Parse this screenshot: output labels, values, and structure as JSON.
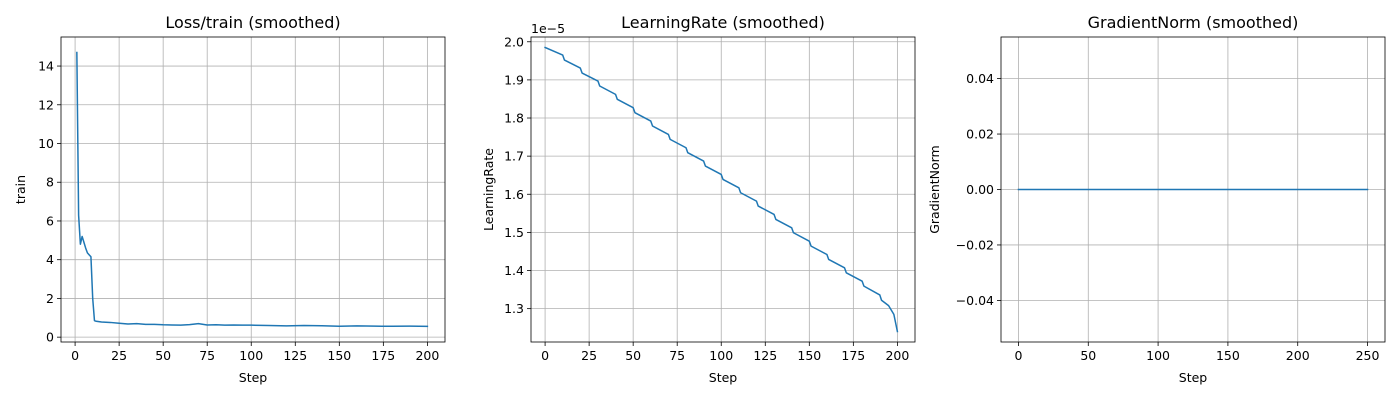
{
  "chart_data": [
    {
      "type": "line",
      "title": "Loss/train (smoothed)",
      "xlabel": "Step",
      "ylabel": "train",
      "xlim": [
        -8,
        210
      ],
      "ylim": [
        -0.25,
        15.5
      ],
      "grid": true,
      "xticks": [
        0,
        25,
        50,
        75,
        100,
        125,
        150,
        175,
        200
      ],
      "yticks": [
        0,
        2,
        4,
        6,
        8,
        10,
        12,
        14
      ],
      "ytick_labels": [
        "0",
        "2",
        "4",
        "6",
        "8",
        "10",
        "12",
        "14"
      ],
      "color": "#1f77b4",
      "series": [
        {
          "x": [
            1,
            2,
            3,
            4,
            5,
            6,
            7,
            8,
            9,
            10,
            11,
            12,
            15,
            20,
            25,
            30,
            35,
            40,
            45,
            50,
            55,
            60,
            65,
            70,
            75,
            80,
            85,
            90,
            95,
            100,
            110,
            120,
            130,
            140,
            150,
            160,
            170,
            180,
            190,
            200
          ],
          "y": [
            14.7,
            6.3,
            4.8,
            5.2,
            4.9,
            4.6,
            4.35,
            4.25,
            4.15,
            2.0,
            0.85,
            0.82,
            0.78,
            0.76,
            0.72,
            0.68,
            0.7,
            0.66,
            0.66,
            0.64,
            0.63,
            0.62,
            0.65,
            0.7,
            0.63,
            0.64,
            0.62,
            0.63,
            0.62,
            0.62,
            0.6,
            0.58,
            0.6,
            0.59,
            0.56,
            0.58,
            0.57,
            0.56,
            0.57,
            0.56
          ]
        }
      ]
    },
    {
      "type": "line",
      "title": "LearningRate (smoothed)",
      "xlabel": "Step",
      "ylabel": "LearningRate",
      "offset_text": "1e−5",
      "xlim": [
        -8,
        210
      ],
      "ylim": [
        1.2125,
        2.0125
      ],
      "grid": true,
      "xticks": [
        0,
        25,
        50,
        75,
        100,
        125,
        150,
        175,
        200
      ],
      "yticks": [
        1.3,
        1.4,
        1.5,
        1.6,
        1.7,
        1.8,
        1.9,
        2.0
      ],
      "ytick_labels": [
        "1.3",
        "1.4",
        "1.5",
        "1.6",
        "1.7",
        "1.8",
        "1.9",
        "2.0"
      ],
      "color": "#1f77b4",
      "series": [
        {
          "x": [
            0,
            10,
            11,
            20,
            21,
            30,
            31,
            40,
            41,
            50,
            51,
            60,
            61,
            70,
            71,
            80,
            81,
            90,
            91,
            100,
            101,
            110,
            111,
            120,
            121,
            130,
            131,
            140,
            141,
            150,
            151,
            160,
            161,
            170,
            171,
            180,
            181,
            190,
            191,
            195,
            198,
            200
          ],
          "y": [
            1.985,
            1.965,
            1.952,
            1.931,
            1.918,
            1.897,
            1.884,
            1.862,
            1.849,
            1.827,
            1.814,
            1.792,
            1.779,
            1.757,
            1.744,
            1.722,
            1.709,
            1.687,
            1.674,
            1.652,
            1.639,
            1.617,
            1.604,
            1.582,
            1.569,
            1.547,
            1.534,
            1.512,
            1.499,
            1.477,
            1.464,
            1.442,
            1.429,
            1.407,
            1.394,
            1.372,
            1.359,
            1.336,
            1.322,
            1.308,
            1.285,
            1.24
          ]
        }
      ]
    },
    {
      "type": "line",
      "title": "GradientNorm (smoothed)",
      "xlabel": "Step",
      "ylabel": "GradientNorm",
      "xlim": [
        -12.5,
        262.5
      ],
      "ylim": [
        -0.055,
        0.055
      ],
      "grid": true,
      "xticks": [
        0,
        50,
        100,
        150,
        200,
        250
      ],
      "yticks": [
        -0.04,
        -0.02,
        0.0,
        0.02,
        0.04
      ],
      "ytick_labels": [
        "−0.04",
        "−0.02",
        "0.00",
        "0.02",
        "0.04"
      ],
      "color": "#1f77b4",
      "series": [
        {
          "x": [
            0,
            250
          ],
          "y": [
            0,
            0
          ]
        }
      ]
    }
  ]
}
